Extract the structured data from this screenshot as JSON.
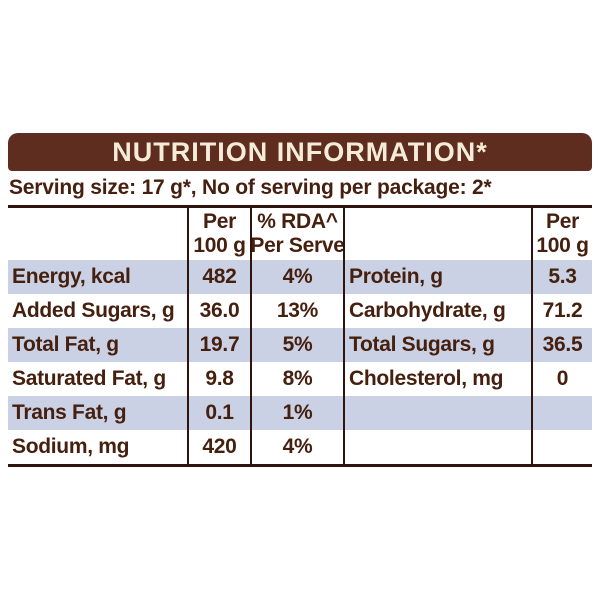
{
  "colors": {
    "bar-bg": "#5e2d1f",
    "bar-text": "#f5ecd8",
    "ink": "#46200f",
    "line": "#2e140d",
    "row-alt": "#cbd1e5"
  },
  "header": {
    "title": "NUTRITION INFORMATION*"
  },
  "serving": {
    "text": "Serving size: 17 g*, No of serving per package: 2*"
  },
  "table": {
    "col_headers": {
      "per100_line1": "Per",
      "per100_line2": "100 g",
      "rda_line1": "% RDA^",
      "rda_line2": "Per Serve",
      "per100_right_line1": "Per",
      "per100_right_line2": "100 g"
    },
    "rows": [
      {
        "left_label": "Energy, kcal",
        "per100": "482",
        "rda": "4%",
        "right_label": "Protein, g",
        "right_per100": "5.3"
      },
      {
        "left_label": "Added Sugars, g",
        "per100": "36.0",
        "rda": "13%",
        "right_label": "Carbohydrate, g",
        "right_per100": "71.2"
      },
      {
        "left_label": "Total Fat, g",
        "per100": "19.7",
        "rda": "5%",
        "right_label": "Total Sugars, g",
        "right_per100": "36.5"
      },
      {
        "left_label": "Saturated Fat, g",
        "per100": "9.8",
        "rda": "8%",
        "right_label": "Cholesterol, mg",
        "right_per100": "0"
      },
      {
        "left_label": "Trans Fat, g",
        "per100": "0.1",
        "rda": "1%",
        "right_label": "",
        "right_per100": ""
      },
      {
        "left_label": "Sodium, mg",
        "per100": "420",
        "rda": "4%",
        "right_label": "",
        "right_per100": ""
      }
    ]
  }
}
